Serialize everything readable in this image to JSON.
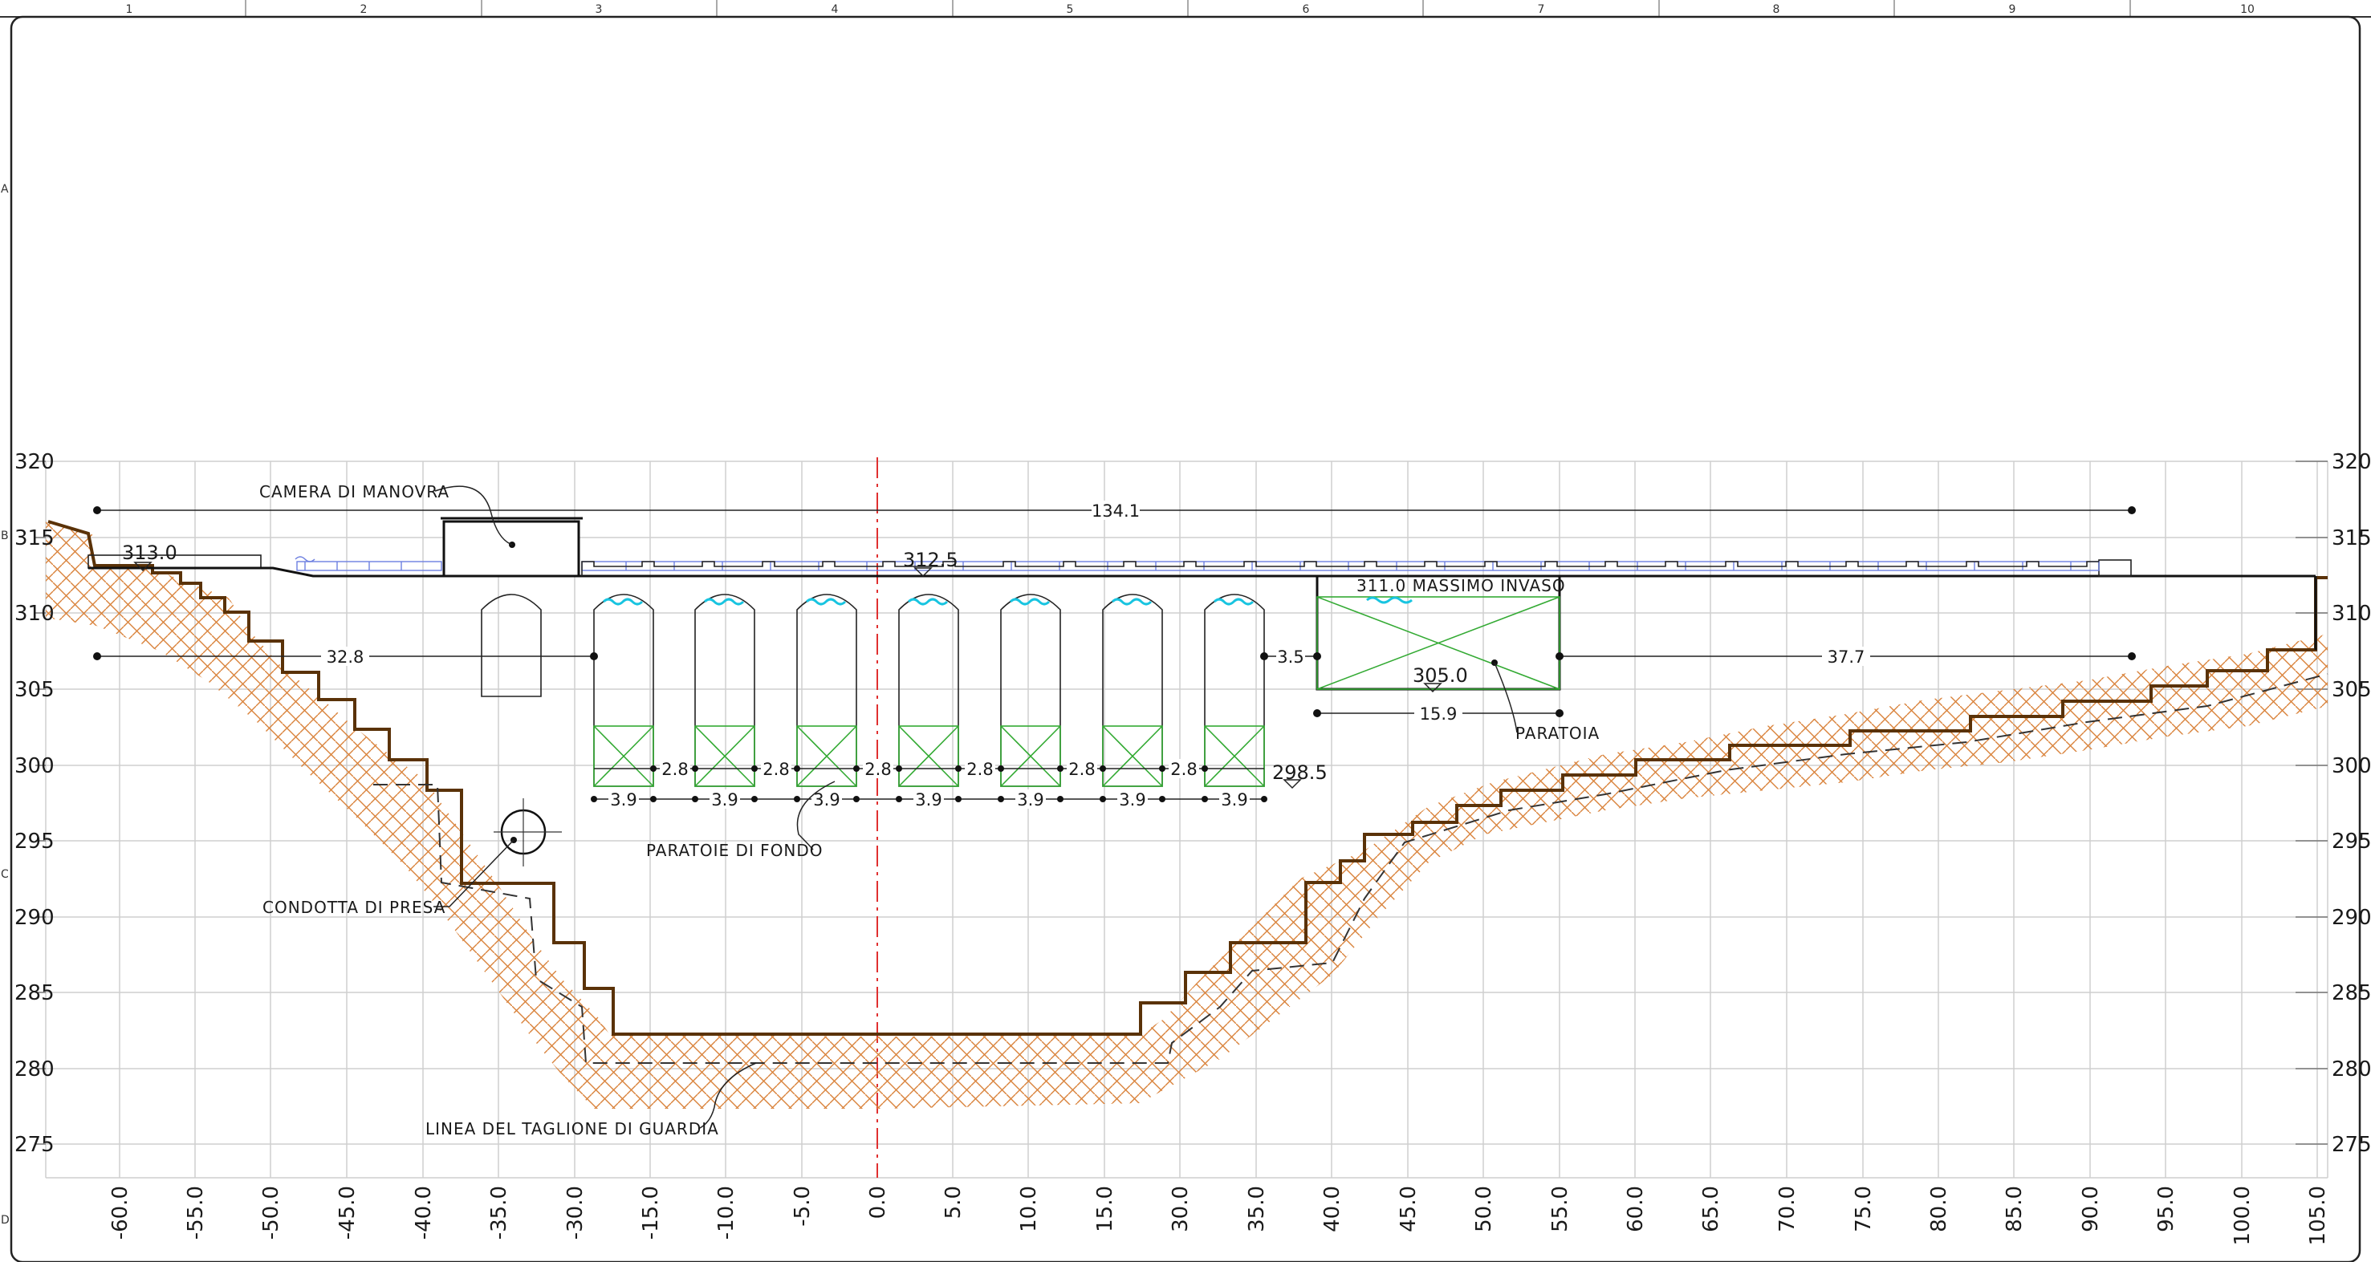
{
  "frame": {
    "column_labels": [
      "1",
      "2",
      "3",
      "4",
      "5",
      "6",
      "7",
      "8",
      "9",
      "10"
    ],
    "row_labels": [
      "A",
      "B",
      "C",
      "D"
    ]
  },
  "axes": {
    "y_ticks": [
      "320",
      "315",
      "310",
      "305",
      "300",
      "295",
      "290",
      "285",
      "280",
      "275"
    ],
    "x_ticks": [
      "-60.0",
      "-55.0",
      "-50.0",
      "-45.0",
      "-40.0",
      "-35.0",
      "-30.0",
      "-15.0",
      "-10.0",
      "-5.0",
      "0.0",
      "5.0",
      "10.0",
      "15.0",
      "30.0",
      "35.0",
      "40.0",
      "45.0",
      "50.0",
      "55.0",
      "60.0",
      "65.0",
      "70.0",
      "75.0",
      "80.0",
      "85.0",
      "90.0",
      "95.0",
      "100.0",
      "105.0"
    ]
  },
  "labels": {
    "camera": "CAMERA  DI  MANOVRA",
    "paratoie": "PARATOIE  DI  FONDO",
    "condotta": "CONDOTTA  DI  PRESA",
    "linea": "LINEA  DEL  TAGLIONE  DI  GUARDIA",
    "paratoia": "PARATOIA",
    "massimo": "311.0  MASSIMO  INVASO"
  },
  "elevations": {
    "crest_left": "313.0",
    "crest_center": "312.5",
    "spillway_sill": "305.0",
    "bottom_outlet": "298.5"
  },
  "dimensions": {
    "overall": "134.1",
    "left_span": "32.8",
    "right_span": "37.7",
    "spillway_width": "15.9",
    "pier_gap": "3.5",
    "gate_spacing": "2.8",
    "gate_width": "3.9"
  },
  "colors": {
    "ground_hatch": "#d9823a",
    "ground_line": "#5a3208",
    "axis_center": "#e03030",
    "water": "#18c4e0",
    "walkway": "#6d7fe0",
    "gate_cross": "#33aa33"
  }
}
